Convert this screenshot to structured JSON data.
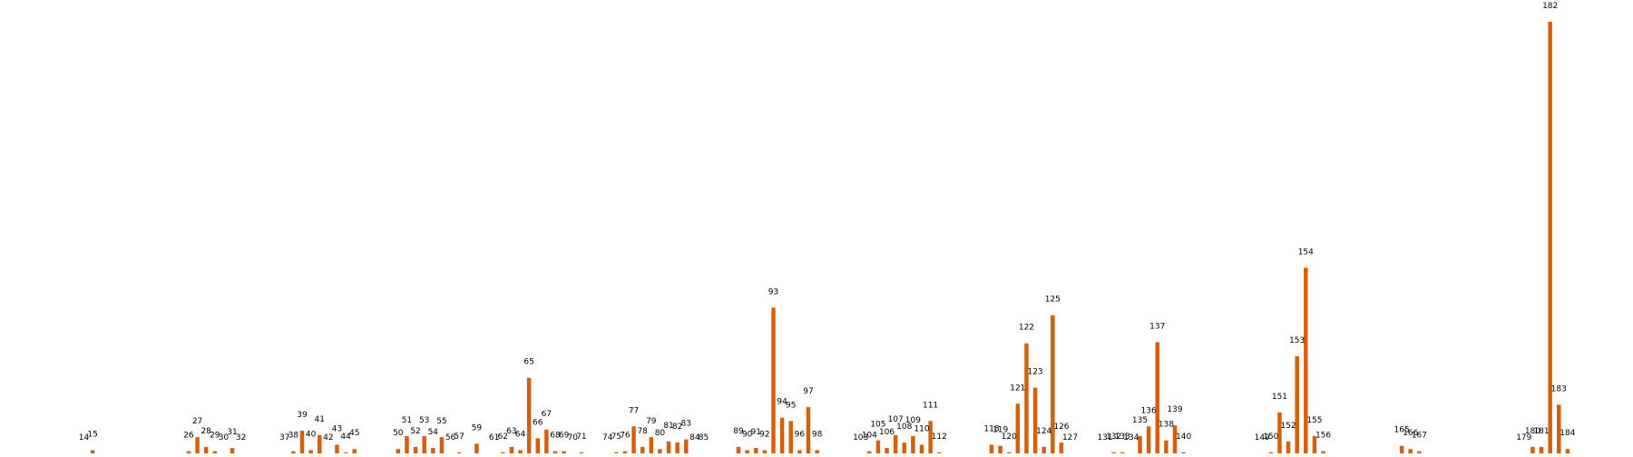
{
  "chart_data": {
    "type": "bar",
    "title": "",
    "xlabel": "",
    "ylabel": "",
    "ylim": [
      0,
      200
    ],
    "grid": false,
    "legend": "none",
    "colors": {
      "bar": "#d2600c",
      "text": "#000000",
      "background": "#ffffff"
    },
    "series": [
      {
        "values": [
          [
            14,
            0
          ],
          [
            15,
            1.5
          ],
          [
            26,
            1
          ],
          [
            27,
            7.5
          ],
          [
            28,
            3
          ],
          [
            29,
            1
          ],
          [
            30,
            0
          ],
          [
            31,
            2.5
          ],
          [
            32,
            0
          ],
          [
            37,
            0
          ],
          [
            38,
            1
          ],
          [
            39,
            10.5
          ],
          [
            40,
            1.5
          ],
          [
            41,
            8.5
          ],
          [
            42,
            0
          ],
          [
            43,
            4
          ],
          [
            44,
            0.5
          ],
          [
            45,
            2
          ],
          [
            50,
            2
          ],
          [
            51,
            8
          ],
          [
            52,
            3
          ],
          [
            53,
            8
          ],
          [
            54,
            2.5
          ],
          [
            55,
            7.5
          ],
          [
            56,
            0
          ],
          [
            57,
            0.5
          ],
          [
            59,
            4.5
          ],
          [
            61,
            0
          ],
          [
            62,
            0.5
          ],
          [
            63,
            3
          ],
          [
            64,
            1.5
          ],
          [
            65,
            35
          ],
          [
            66,
            7
          ],
          [
            67,
            11
          ],
          [
            68,
            1
          ],
          [
            69,
            1
          ],
          [
            70,
            0
          ],
          [
            71,
            0.5
          ],
          [
            74,
            0
          ],
          [
            75,
            0.5
          ],
          [
            76,
            1
          ],
          [
            77,
            12.5
          ],
          [
            78,
            3
          ],
          [
            79,
            7.5
          ],
          [
            80,
            2
          ],
          [
            81,
            5.5
          ],
          [
            82,
            5
          ],
          [
            83,
            6.5
          ],
          [
            84,
            0
          ],
          [
            85,
            0
          ],
          [
            89,
            3
          ],
          [
            90,
            1.5
          ],
          [
            91,
            2.5
          ],
          [
            92,
            1.5
          ],
          [
            93,
            67.5
          ],
          [
            94,
            16.5
          ],
          [
            95,
            15
          ],
          [
            96,
            1.5
          ],
          [
            97,
            21.5
          ],
          [
            98,
            1.5
          ],
          [
            103,
            0
          ],
          [
            104,
            1
          ],
          [
            105,
            6
          ],
          [
            106,
            2.5
          ],
          [
            107,
            8.5
          ],
          [
            108,
            5
          ],
          [
            109,
            8
          ],
          [
            110,
            4
          ],
          [
            111,
            15
          ],
          [
            112,
            0.5
          ],
          [
            118,
            4
          ],
          [
            119,
            3.5
          ],
          [
            120,
            0.5
          ],
          [
            121,
            23
          ],
          [
            122,
            51
          ],
          [
            123,
            30.5
          ],
          [
            124,
            3
          ],
          [
            125,
            64
          ],
          [
            126,
            5
          ],
          [
            127,
            0
          ],
          [
            131,
            0
          ],
          [
            132,
            0.5
          ],
          [
            133,
            0.5
          ],
          [
            134,
            0
          ],
          [
            135,
            8
          ],
          [
            136,
            12.5
          ],
          [
            137,
            51.5
          ],
          [
            138,
            6
          ],
          [
            139,
            13
          ],
          [
            140,
            0.5
          ],
          [
            149,
            0
          ],
          [
            150,
            0.5
          ],
          [
            151,
            19
          ],
          [
            152,
            5.5
          ],
          [
            153,
            45
          ],
          [
            154,
            86
          ],
          [
            155,
            8
          ],
          [
            156,
            1
          ],
          [
            165,
            3.5
          ],
          [
            166,
            2
          ],
          [
            167,
            1
          ],
          [
            179,
            0
          ],
          [
            180,
            3
          ],
          [
            181,
            3
          ],
          [
            182,
            200
          ],
          [
            183,
            22.5
          ],
          [
            184,
            2
          ]
        ]
      }
    ]
  }
}
